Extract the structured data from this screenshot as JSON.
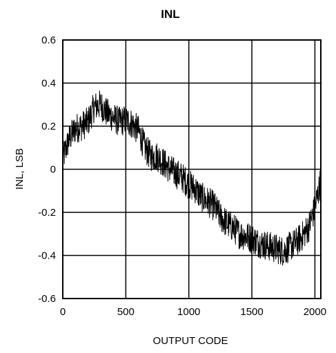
{
  "chart_data": {
    "type": "line",
    "title": "INL",
    "xlabel": "OUTPUT CODE",
    "ylabel": "INL, LSB",
    "xlim": [
      0,
      2047
    ],
    "ylim": [
      -0.6,
      0.6
    ],
    "x_ticks": [
      0,
      500,
      1000,
      1500,
      2000
    ],
    "x_tick_labels": [
      "0",
      "500",
      "1000",
      "1500",
      "2000"
    ],
    "y_ticks": [
      0.6,
      0.4,
      0.2,
      0,
      -0.2,
      -0.4,
      -0.6
    ],
    "y_tick_labels": [
      "0.6",
      "0.4",
      "0.2",
      "0",
      "-0.2",
      "-0.4",
      "-0.6"
    ],
    "grid": true,
    "legend": "none",
    "line_color": "#000000",
    "series": [
      {
        "x": [
          0,
          50,
          100,
          150,
          200,
          250,
          300,
          350,
          400,
          450,
          500,
          550,
          600,
          650,
          700,
          750,
          800,
          850,
          900,
          950,
          1000,
          1050,
          1100,
          1150,
          1200,
          1250,
          1300,
          1350,
          1400,
          1450,
          1500,
          1550,
          1600,
          1650,
          1700,
          1750,
          1800,
          1850,
          1900,
          1950,
          2000,
          2047
        ],
        "values": [
          0.05,
          0.14,
          0.19,
          0.2,
          0.22,
          0.29,
          0.3,
          0.26,
          0.24,
          0.22,
          0.23,
          0.21,
          0.18,
          0.1,
          0.06,
          0.06,
          0.03,
          0.0,
          -0.02,
          -0.04,
          -0.07,
          -0.09,
          -0.13,
          -0.15,
          -0.17,
          -0.22,
          -0.25,
          -0.27,
          -0.3,
          -0.31,
          -0.32,
          -0.34,
          -0.35,
          -0.36,
          -0.37,
          -0.38,
          -0.36,
          -0.34,
          -0.31,
          -0.27,
          -0.18,
          -0.05
        ],
        "noise_amplitude": 0.07
      }
    ]
  }
}
